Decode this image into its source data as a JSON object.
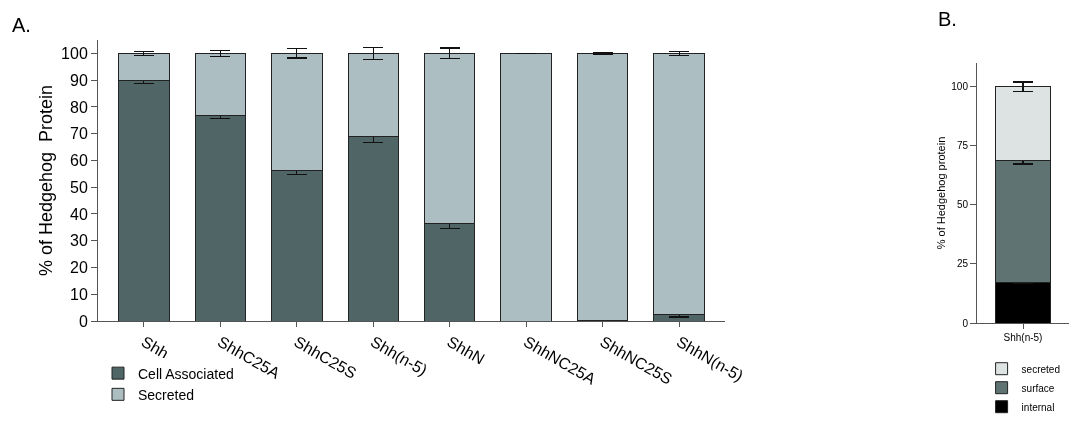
{
  "chart_data": [
    {
      "type": "bar",
      "stacked": true,
      "ylabel": "% of Hedgehog  Protein",
      "annotations": [
        "A."
      ],
      "categories": [
        "Shh",
        "ShhC25A",
        "ShhC25S",
        "Shh(n-5)",
        "ShhN",
        "ShhNC25A",
        "ShhNC25S",
        "ShhN(n-5)"
      ],
      "series": [
        {
          "name": "Cell Associated",
          "color": "#4f6566",
          "values": [
            89.7,
            76.8,
            56.3,
            68.8,
            36.5,
            0,
            0.3,
            2.5
          ],
          "errors": [
            0.9,
            1.1,
            1.6,
            2.0,
            2.0,
            null,
            0.2,
            1.0
          ]
        },
        {
          "name": "Secreted",
          "color": "#adbec2",
          "values": [
            10.3,
            23.2,
            43.7,
            31.2,
            63.5,
            100,
            99.7,
            97.5
          ],
          "errors": [
            0.8,
            1.2,
            1.7,
            2.2,
            2.0,
            null,
            0.2,
            0.8
          ]
        }
      ],
      "ylim": [
        0,
        105
      ],
      "yticks": [
        0,
        10,
        20,
        30,
        40,
        50,
        60,
        70,
        80,
        90,
        100
      ],
      "grid": false,
      "legend": "bottom left"
    },
    {
      "type": "bar",
      "stacked": true,
      "ylabel": "% of Hedgehog protein",
      "annotations": [
        "B."
      ],
      "categories": [
        "Shh(n-5)"
      ],
      "series": [
        {
          "name": "internal",
          "color": "#000000",
          "values": [
            17.2
          ],
          "errors": [
            0.5
          ]
        },
        {
          "name": "surface",
          "color": "#5f7373",
          "values": [
            51.6
          ],
          "errors": [
            1.5
          ]
        },
        {
          "name": "secreted",
          "color": "#dde3e3",
          "values": [
            31.2
          ],
          "errors": [
            2.0
          ]
        }
      ],
      "ylim": [
        0,
        110
      ],
      "yticks": [
        0,
        25,
        50,
        75,
        100
      ],
      "grid": false,
      "legend": "bottom"
    }
  ]
}
